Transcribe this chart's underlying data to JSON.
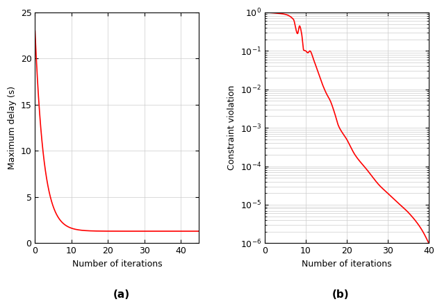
{
  "plot_a": {
    "xlabel": "Number of iterations",
    "ylabel": "Maximum delay (s)",
    "label": "(a)",
    "xlim": [
      0,
      45
    ],
    "ylim": [
      0,
      25
    ],
    "xticks": [
      0,
      10,
      20,
      30,
      40
    ],
    "yticks": [
      0,
      5,
      10,
      15,
      20,
      25
    ],
    "line_color": "#FF0000",
    "linewidth": 1.2
  },
  "plot_b": {
    "xlabel": "Number of iterations",
    "ylabel": "Constraint violation",
    "label": "(b)",
    "xlim": [
      0,
      40
    ],
    "ylim_log": [
      -6,
      0
    ],
    "xticks": [
      0,
      10,
      20,
      30,
      40
    ],
    "line_color": "#FF0000",
    "linewidth": 1.2
  },
  "fig_label_fontsize": 11,
  "axis_label_fontsize": 9,
  "tick_fontsize": 9,
  "grid_color": "#cccccc",
  "grid_linewidth": 0.5
}
